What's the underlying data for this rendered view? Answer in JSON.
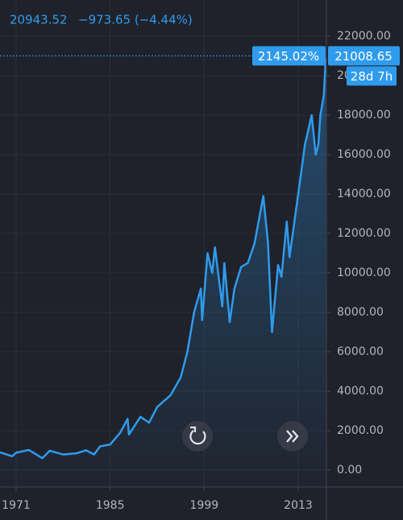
{
  "chart_data": {
    "type": "area",
    "header_value": "20943.52",
    "header_change": "−973.65 (−4.44%)",
    "color": "#2f9bec",
    "x": [
      1968.6,
      1969.5,
      1970.4,
      1971.0,
      1972.9,
      1974.9,
      1976.0,
      1978.0,
      1980.0,
      1981.4,
      1982.6,
      1983.5,
      1985.0,
      1986.5,
      1987.6,
      1987.8,
      1989.5,
      1990.8,
      1992.0,
      1994.0,
      1995.5,
      1996.5,
      1997.5,
      1998.5,
      1998.7,
      1999.5,
      2000.2,
      2000.6,
      2001.7,
      2002.0,
      2002.8,
      2003.5,
      2004.5,
      2005.5,
      2006.5,
      2007.8,
      2008.5,
      2009.1,
      2010.0,
      2010.5,
      2011.3,
      2011.7,
      2013.0,
      2014.0,
      2015.0,
      2015.6,
      2016.0,
      2016.3,
      2016.8,
      2017.1
    ],
    "values": [
      900,
      800,
      700,
      880,
      1020,
      600,
      980,
      790,
      850,
      1000,
      790,
      1200,
      1300,
      1900,
      2600,
      1800,
      2700,
      2400,
      3200,
      3800,
      4700,
      6000,
      8000,
      9200,
      7600,
      11000,
      10000,
      11300,
      8300,
      10500,
      7500,
      9200,
      10300,
      10500,
      11500,
      13900,
      11500,
      7000,
      10400,
      9800,
      12600,
      10800,
      14000,
      16500,
      18000,
      16000,
      16500,
      18000,
      19000,
      20900
    ],
    "xlim": [
      1968.6,
      2017.2
    ],
    "xticks": [
      1971,
      1985,
      1999,
      2013
    ],
    "ylim": [
      -860,
      23840
    ],
    "yticks": [
      {
        "value": 0,
        "label": "0.00"
      },
      {
        "value": 2000,
        "label": "2000.00"
      },
      {
        "value": 4000,
        "label": "4000.00"
      },
      {
        "value": 6000,
        "label": "6000.00"
      },
      {
        "value": 8000,
        "label": "8000.00"
      },
      {
        "value": 10000,
        "label": "10000.00"
      },
      {
        "value": 12000,
        "label": "12000.00"
      },
      {
        "value": 14000,
        "label": "14000.00"
      },
      {
        "value": 16000,
        "label": "16000.00"
      },
      {
        "value": 18000,
        "label": "18000.00"
      },
      {
        "value": 20000,
        "label": "20000.00"
      },
      {
        "value": 22000,
        "label": "22000.00"
      }
    ],
    "grid": true,
    "last_price": 21008.65,
    "percent_change": "2145.02%",
    "countdown": "28d 7h"
  }
}
